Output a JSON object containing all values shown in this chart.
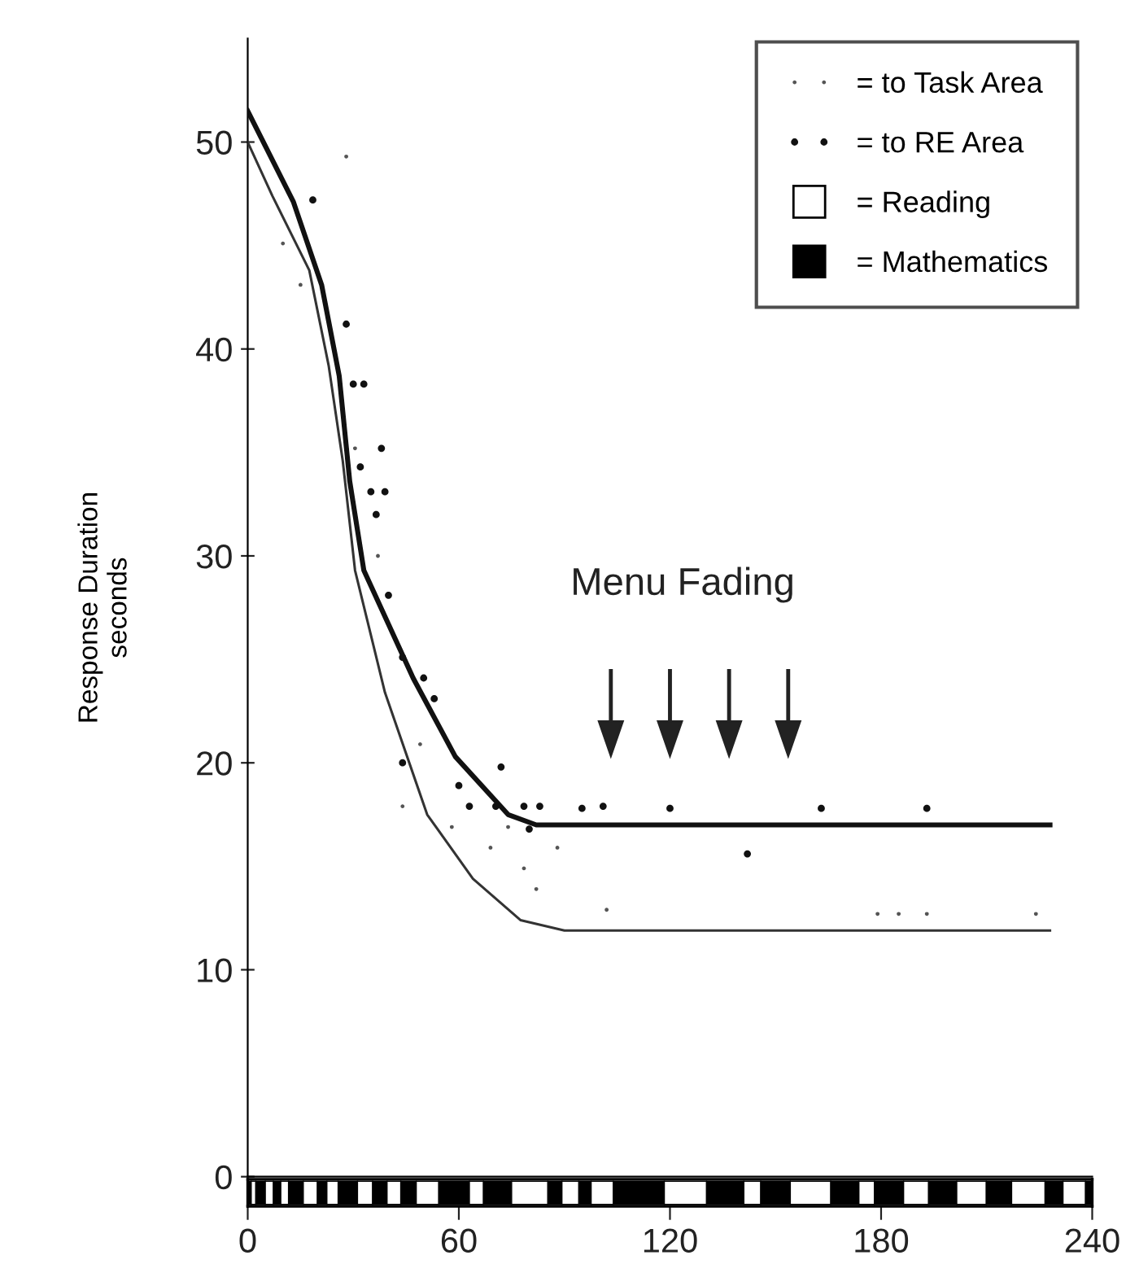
{
  "chart_data": [
    {
      "type": "line",
      "ylabel": "Response Duration\nseconds",
      "xlim": [
        0,
        240
      ],
      "ylim": [
        0,
        55
      ],
      "xticks": [
        0,
        60,
        120,
        180,
        240
      ],
      "yticks": [
        0,
        10,
        20,
        30,
        40,
        50
      ],
      "tick_labels": "y",
      "grid": false,
      "legend": "top right",
      "series": [
        {
          "type": "scatter",
          "name": "= to Task Area",
          "color": "#555555",
          "marker": "circle",
          "x": [
            28,
            10,
            15,
            30.5,
            37,
            49,
            44,
            58,
            74,
            69,
            88,
            78.5,
            82,
            102,
            179,
            185,
            193,
            224
          ],
          "values": [
            49.3,
            45.1,
            43.1,
            35.2,
            30.0,
            20.9,
            17.9,
            16.9,
            16.9,
            15.9,
            15.9,
            14.9,
            13.9,
            12.9,
            12.7,
            12.7,
            12.7,
            12.7
          ]
        },
        {
          "type": "scatter",
          "name": "= to RE Area",
          "color": "#111111",
          "marker": "circle",
          "x": [
            18.5,
            28,
            30,
            33,
            38,
            32,
            35,
            39,
            36.5,
            40,
            44,
            50,
            53,
            44,
            60,
            72,
            63,
            70.5,
            78.5,
            83,
            95,
            101,
            120,
            80,
            142,
            163,
            193
          ],
          "values": [
            47.2,
            41.2,
            38.3,
            38.3,
            35.2,
            34.3,
            33.1,
            33.1,
            32.0,
            28.1,
            25.1,
            24.1,
            23.1,
            20.0,
            18.9,
            19.8,
            17.9,
            17.9,
            17.9,
            17.9,
            17.8,
            17.9,
            17.8,
            16.8,
            15.6,
            17.8,
            17.8
          ]
        },
        {
          "color": "#111111",
          "line_style": "solid",
          "marker": "none",
          "x": [
            0,
            13,
            21,
            26,
            29,
            33,
            47,
            59,
            74,
            82,
            228
          ],
          "values": [
            51.5,
            47.1,
            43.1,
            38.7,
            33.6,
            29.3,
            24.1,
            20.3,
            17.5,
            17.0,
            17.0
          ]
        },
        {
          "color": "#333333",
          "line_style": "solid",
          "marker": "none",
          "x": [
            0,
            7,
            17.5,
            23,
            27,
            30.5,
            39,
            51,
            64,
            77.5,
            90,
            228
          ],
          "values": [
            50.0,
            47.4,
            43.8,
            39.2,
            34.6,
            29.3,
            23.4,
            17.5,
            14.4,
            12.4,
            11.9,
            11.9
          ]
        }
      ],
      "annotations": [
        "Menu Fading"
      ]
    },
    {
      "type": "bar",
      "orientation": "horizontal",
      "stacked": true,
      "categories": [
        null
      ],
      "xlim": [
        0,
        240
      ],
      "xticks": [
        0,
        60,
        120,
        180,
        240
      ],
      "tick_labels": "x",
      "legend": "top right",
      "series": [
        {
          "name": "= Mathematics",
          "color": "#000000",
          "values": [
            1.0
          ]
        },
        {
          "name": "= Reading",
          "color": "#ffffff",
          "values": [
            1.3
          ]
        },
        {
          "color": "#000000",
          "values": [
            2.7
          ]
        },
        {
          "color": "#ffffff",
          "values": [
            2.3
          ]
        },
        {
          "color": "#000000",
          "values": [
            2.1
          ]
        },
        {
          "color": "#ffffff",
          "values": [
            2.2
          ]
        },
        {
          "color": "#000000",
          "values": [
            4.2
          ]
        },
        {
          "color": "#ffffff",
          "values": [
            4.0
          ]
        },
        {
          "color": "#000000",
          "values": [
            2.7
          ]
        },
        {
          "color": "#ffffff",
          "values": [
            3.2
          ]
        },
        {
          "color": "#000000",
          "values": [
            5.5
          ]
        },
        {
          "color": "#ffffff",
          "values": [
            4.3
          ]
        },
        {
          "color": "#000000",
          "values": [
            4.1
          ]
        },
        {
          "color": "#ffffff",
          "values": [
            3.9
          ]
        },
        {
          "color": "#000000",
          "values": [
            4.4
          ]
        },
        {
          "color": "#ffffff",
          "values": [
            6.4
          ]
        },
        {
          "color": "#000000",
          "values": [
            8.7
          ]
        },
        {
          "color": "#ffffff",
          "values": [
            4.0
          ]
        },
        {
          "color": "#000000",
          "values": [
            8.0
          ]
        },
        {
          "color": "#ffffff",
          "values": [
            10.3
          ]
        },
        {
          "color": "#000000",
          "values": [
            4.0
          ]
        },
        {
          "color": "#ffffff",
          "values": [
            4.8
          ]
        },
        {
          "color": "#000000",
          "values": [
            3.5
          ]
        },
        {
          "color": "#ffffff",
          "values": [
            6.3
          ]
        },
        {
          "color": "#000000",
          "values": [
            14.5
          ]
        },
        {
          "color": "#ffffff",
          "values": [
            12.0
          ]
        },
        {
          "color": "#000000",
          "values": [
            10.6
          ]
        },
        {
          "color": "#ffffff",
          "values": [
            4.8
          ]
        },
        {
          "color": "#000000",
          "values": [
            8.4
          ]
        },
        {
          "color": "#ffffff",
          "values": [
            11.5
          ]
        },
        {
          "color": "#000000",
          "values": [
            8.0
          ]
        },
        {
          "color": "#ffffff",
          "values": [
            4.4
          ]
        },
        {
          "color": "#000000",
          "values": [
            8.3
          ]
        },
        {
          "color": "#ffffff",
          "values": [
            7.1
          ]
        },
        {
          "color": "#000000",
          "values": [
            8.0
          ]
        },
        {
          "color": "#ffffff",
          "values": [
            8.4
          ]
        },
        {
          "color": "#000000",
          "values": [
            7.2
          ]
        },
        {
          "color": "#ffffff",
          "values": [
            9.5
          ]
        },
        {
          "color": "#000000",
          "values": [
            5.1
          ]
        },
        {
          "color": "#ffffff",
          "values": [
            6.4
          ]
        },
        {
          "color": "#000000",
          "values": [
            1.9
          ]
        }
      ]
    }
  ]
}
